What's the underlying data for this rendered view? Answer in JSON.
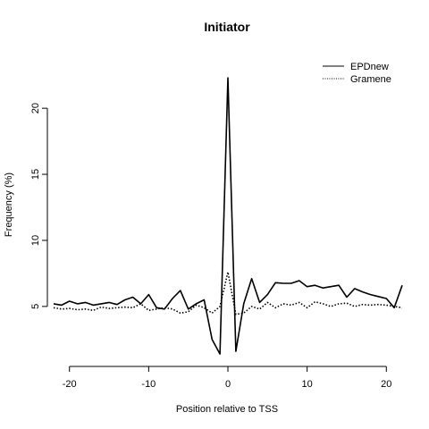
{
  "chart_data": {
    "type": "line",
    "title": "Initiator",
    "xlabel": "Position relative to TSS",
    "ylabel": "Frequency (%)",
    "xlim": [
      -22,
      22
    ],
    "ylim": [
      1,
      24
    ],
    "xticks": [
      -20,
      -10,
      0,
      10,
      20
    ],
    "yticks": [
      5,
      10,
      15,
      20
    ],
    "grid": false,
    "legend_position": "top-right",
    "x": [
      -22,
      -21,
      -20,
      -19,
      -18,
      -17,
      -16,
      -15,
      -14,
      -13,
      -12,
      -11,
      -10,
      -9,
      -8,
      -7,
      -6,
      -5,
      -4,
      -3,
      -2,
      -1,
      0,
      1,
      2,
      3,
      4,
      5,
      6,
      7,
      8,
      9,
      10,
      11,
      12,
      13,
      14,
      15,
      16,
      17,
      18,
      19,
      20,
      21,
      22
    ],
    "series": [
      {
        "name": "EPDnew",
        "style": "solid",
        "values": [
          5.2,
          5.1,
          5.4,
          5.2,
          5.3,
          5.1,
          5.2,
          5.3,
          5.15,
          5.5,
          5.7,
          5.2,
          5.9,
          4.9,
          4.8,
          5.6,
          6.2,
          4.8,
          5.2,
          5.5,
          2.5,
          1.4,
          22.3,
          1.6,
          5.2,
          7.1,
          5.3,
          5.9,
          6.8,
          6.75,
          6.75,
          6.95,
          6.5,
          6.6,
          6.4,
          6.5,
          6.6,
          5.7,
          6.35,
          6.1,
          5.9,
          5.75,
          5.6,
          4.9,
          6.6
        ]
      },
      {
        "name": "Gramene",
        "style": "dotted",
        "values": [
          4.9,
          4.8,
          4.85,
          4.75,
          4.8,
          4.7,
          4.95,
          4.85,
          4.9,
          4.95,
          4.9,
          5.2,
          4.7,
          4.8,
          4.9,
          4.8,
          4.5,
          4.6,
          5.1,
          4.9,
          4.5,
          5.0,
          7.6,
          4.4,
          4.5,
          5.0,
          4.8,
          5.3,
          4.9,
          5.2,
          5.1,
          5.3,
          4.9,
          5.35,
          5.2,
          5.0,
          5.2,
          5.25,
          5.0,
          5.15,
          5.1,
          5.15,
          5.1,
          5.0,
          4.9
        ]
      }
    ]
  }
}
